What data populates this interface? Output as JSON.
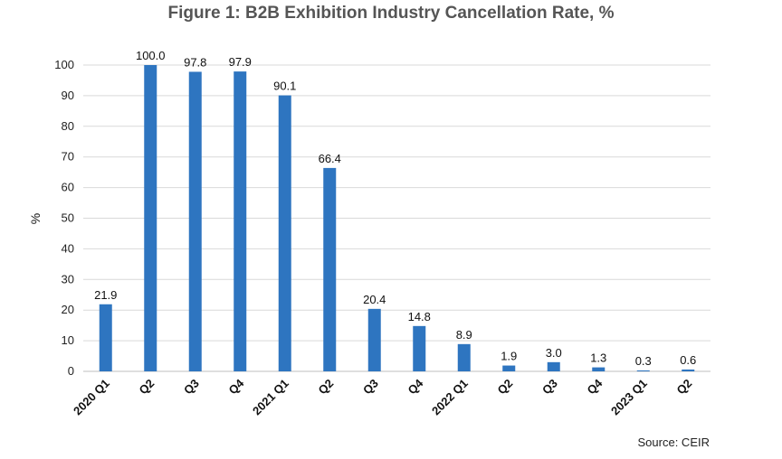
{
  "chart_data": {
    "type": "bar",
    "title": "Figure 1: B2B Exhibition Industry Cancellation Rate, %",
    "xlabel": "",
    "ylabel": "%",
    "ylim": [
      0,
      100
    ],
    "yticks": [
      0,
      10,
      20,
      30,
      40,
      50,
      60,
      70,
      80,
      90,
      100
    ],
    "grid": true,
    "categories": [
      "2020 Q1",
      "Q2",
      "Q3",
      "Q4",
      "2021 Q1",
      "Q2",
      "Q3",
      "Q4",
      "2022 Q1",
      "Q2",
      "Q3",
      "Q4",
      "2023 Q1",
      "Q2"
    ],
    "values": [
      21.9,
      100.0,
      97.8,
      97.9,
      90.1,
      66.4,
      20.4,
      14.8,
      8.9,
      1.9,
      3.0,
      1.3,
      0.3,
      0.6
    ],
    "value_labels": [
      "21.9",
      "100.0",
      "97.8",
      "97.9",
      "90.1",
      "66.4",
      "20.4",
      "14.8",
      "8.9",
      "1.9",
      "3.0",
      "1.3",
      "0.3",
      "0.6"
    ],
    "bar_color": "#2E75C0",
    "source": "Source: CEIR"
  }
}
